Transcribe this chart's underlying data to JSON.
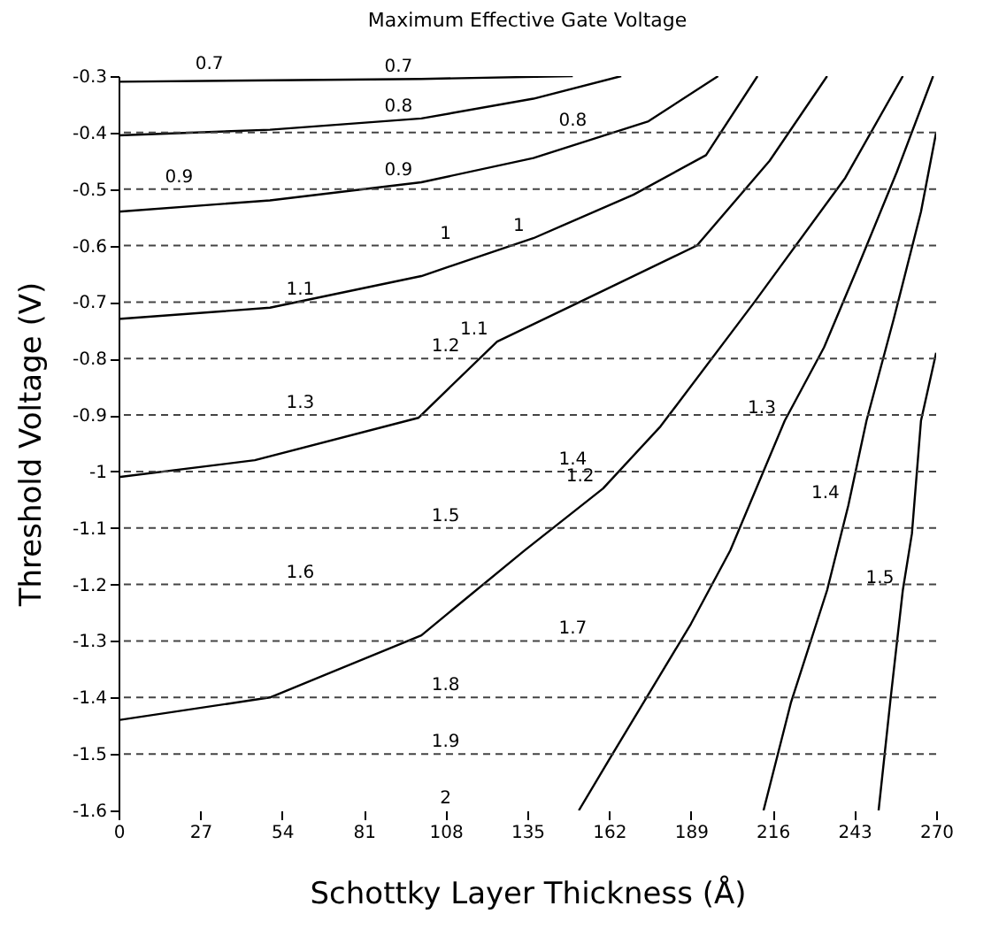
{
  "chart_data": {
    "type": "line",
    "title": "Maximum Effective Gate Voltage",
    "xlabel": "Schottky Layer Thickness (Å)",
    "ylabel": "Threshold Voltage (V)",
    "xlim": [
      0,
      270
    ],
    "xticks": [
      0,
      27,
      54,
      81,
      108,
      135,
      162,
      189,
      216,
      243,
      270
    ],
    "ylim": [
      -1.6,
      -0.3
    ],
    "yticks": [
      -0.3,
      -0.4,
      -0.5,
      -0.6,
      -0.7,
      -0.8,
      -0.9,
      -1,
      -1.1,
      -1.2,
      -1.3,
      -1.4,
      -1.5,
      -1.6
    ],
    "grid": false,
    "legend": false,
    "marker": "none",
    "line_style": "solid",
    "series": [
      {
        "name": "0.7",
        "color": "#000000",
        "x": [
          0,
          100,
          150
        ],
        "values": [
          -0.31,
          -0.305,
          -0.3
        ]
      },
      {
        "name": "0.8",
        "color": "#000000",
        "x": [
          0,
          50,
          100,
          137,
          166
        ],
        "values": [
          -0.405,
          -0.395,
          -0.375,
          -0.34,
          -0.3
        ]
      },
      {
        "name": "0.9",
        "color": "#000000",
        "x": [
          0,
          50,
          100,
          137,
          175,
          198
        ],
        "values": [
          -0.54,
          -0.52,
          -0.488,
          -0.445,
          -0.38,
          -0.3
        ]
      },
      {
        "name": "1",
        "color": "#000000",
        "x": [
          0,
          50,
          100,
          137,
          170,
          194,
          211
        ],
        "values": [
          -0.73,
          -0.71,
          -0.654,
          -0.587,
          -0.51,
          -0.44,
          -0.3
        ]
      },
      {
        "name": "1.1",
        "color": "#000000",
        "x": [
          0,
          45,
          99,
          125,
          160,
          191,
          215,
          234
        ],
        "values": [
          -1.01,
          -0.98,
          -0.905,
          -0.77,
          -0.68,
          -0.6,
          -0.45,
          -0.3
        ]
      },
      {
        "name": "1.2",
        "color": "#000000",
        "x": [
          0,
          50,
          100,
          134,
          160,
          179,
          210,
          240,
          259
        ],
        "values": [
          -1.44,
          -1.4,
          -1.29,
          -1.14,
          -1.03,
          -0.92,
          -0.7,
          -0.48,
          -0.3
        ]
      },
      {
        "name": "1.3",
        "color": "#000000",
        "x": [
          152,
          162,
          189,
          202,
          220,
          233,
          244,
          257,
          269
        ],
        "values": [
          -1.6,
          -1.51,
          -1.27,
          -1.14,
          -0.91,
          -0.78,
          -0.64,
          -0.47,
          -0.3
        ]
      },
      {
        "name": "1.4",
        "color": "#000000",
        "x": [
          213,
          222,
          234,
          241,
          247,
          256,
          265,
          270
        ],
        "values": [
          -1.6,
          -1.41,
          -1.21,
          -1.06,
          -0.91,
          -0.73,
          -0.54,
          -0.4
        ]
      },
      {
        "name": "1.5",
        "color": "#000000",
        "x": [
          251,
          255,
          259,
          262,
          265,
          270
        ],
        "values": [
          -1.6,
          -1.4,
          -1.21,
          -1.11,
          -0.91,
          -0.79
        ]
      }
    ],
    "ref_lines": [
      {
        "axis": "y",
        "value": -0.4,
        "line_style": "dashed"
      },
      {
        "axis": "y",
        "value": -0.5,
        "line_style": "dashed"
      },
      {
        "axis": "y",
        "value": -0.6,
        "line_style": "dashed"
      },
      {
        "axis": "y",
        "value": -0.7,
        "line_style": "dashed"
      },
      {
        "axis": "y",
        "value": -0.8,
        "line_style": "dashed"
      },
      {
        "axis": "y",
        "value": -0.9,
        "line_style": "dashed"
      },
      {
        "axis": "y",
        "value": -1,
        "line_style": "dashed"
      },
      {
        "axis": "y",
        "value": -1.1,
        "line_style": "dashed"
      },
      {
        "axis": "y",
        "value": -1.2,
        "line_style": "dashed"
      },
      {
        "axis": "y",
        "value": -1.3,
        "line_style": "dashed"
      },
      {
        "axis": "y",
        "value": -1.4,
        "line_style": "dashed"
      },
      {
        "axis": "y",
        "value": -1.5,
        "line_style": "dashed"
      }
    ],
    "annotations": [
      {
        "text": "0.7",
        "x": 30,
        "y": -0.3
      },
      {
        "text": "0.8",
        "x": 150,
        "y": -0.4
      },
      {
        "text": "0.9",
        "x": 20,
        "y": -0.5
      },
      {
        "text": "1",
        "x": 108,
        "y": -0.6
      },
      {
        "text": "1.1",
        "x": 60,
        "y": -0.7
      },
      {
        "text": "1.2",
        "x": 108,
        "y": -0.8
      },
      {
        "text": "1.3",
        "x": 60,
        "y": -0.9
      },
      {
        "text": "1.4",
        "x": 150,
        "y": -1
      },
      {
        "text": "1.5",
        "x": 108,
        "y": -1.1
      },
      {
        "text": "1.6",
        "x": 60,
        "y": -1.2
      },
      {
        "text": "1.7",
        "x": 150,
        "y": -1.3
      },
      {
        "text": "1.8",
        "x": 108,
        "y": -1.4
      },
      {
        "text": "1.9",
        "x": 108,
        "y": -1.5
      },
      "2"
    ]
  }
}
